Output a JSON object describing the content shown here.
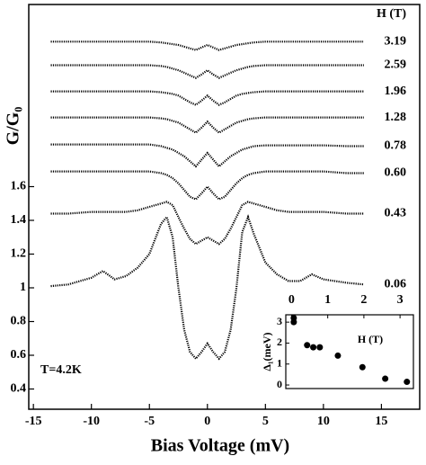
{
  "chart_data": [
    {
      "type": "line",
      "x_label": "Bias Voltage (mV)",
      "y_label": "G/G₀",
      "legend_title": "H (T)",
      "annotation": "T=4.2K",
      "xlim": [
        -15.4,
        18.3
      ],
      "ylim": [
        0.28,
        2.68
      ],
      "xticks": [
        -15,
        -10,
        -5,
        0,
        5,
        10,
        15
      ],
      "yticks": [
        0.4,
        0.6,
        0.8,
        1.0,
        1.2,
        1.4,
        1.6
      ],
      "x": [
        -13.5,
        -12,
        -10,
        -9,
        -8,
        -7,
        -6,
        -5,
        -4,
        -3.5,
        -3,
        -2.5,
        -2,
        -1.5,
        -1,
        -0.5,
        0,
        0.5,
        1,
        1.5,
        2,
        2.5,
        3,
        3.5,
        4,
        5,
        6,
        7,
        8,
        9,
        10,
        12,
        13.5
      ],
      "series": [
        {
          "name": "0.06",
          "color": "#000000",
          "values": [
            1.01,
            1.02,
            1.06,
            1.1,
            1.05,
            1.07,
            1.12,
            1.2,
            1.38,
            1.42,
            1.3,
            1.0,
            0.75,
            0.62,
            0.58,
            0.62,
            0.67,
            0.62,
            0.58,
            0.62,
            0.75,
            1.0,
            1.33,
            1.42,
            1.32,
            1.15,
            1.08,
            1.04,
            1.04,
            1.08,
            1.05,
            1.03,
            1.02
          ]
        },
        {
          "name": "0.43",
          "color": "#000000",
          "values": [
            1.44,
            1.44,
            1.45,
            1.45,
            1.45,
            1.45,
            1.46,
            1.48,
            1.5,
            1.51,
            1.49,
            1.42,
            1.35,
            1.29,
            1.26,
            1.28,
            1.3,
            1.28,
            1.26,
            1.29,
            1.35,
            1.42,
            1.49,
            1.51,
            1.5,
            1.48,
            1.46,
            1.45,
            1.45,
            1.45,
            1.45,
            1.44,
            1.44
          ]
        },
        {
          "name": "0.60",
          "color": "#000000",
          "values": [
            1.69,
            1.69,
            1.69,
            1.69,
            1.69,
            1.69,
            1.69,
            1.69,
            1.68,
            1.67,
            1.65,
            1.62,
            1.58,
            1.54,
            1.525,
            1.56,
            1.6,
            1.56,
            1.525,
            1.54,
            1.58,
            1.62,
            1.65,
            1.67,
            1.68,
            1.69,
            1.69,
            1.69,
            1.69,
            1.69,
            1.69,
            1.68,
            1.68
          ]
        },
        {
          "name": "0.78",
          "color": "#000000",
          "values": [
            1.85,
            1.85,
            1.85,
            1.85,
            1.85,
            1.85,
            1.85,
            1.85,
            1.84,
            1.83,
            1.82,
            1.8,
            1.78,
            1.75,
            1.72,
            1.76,
            1.8,
            1.76,
            1.72,
            1.75,
            1.78,
            1.8,
            1.82,
            1.83,
            1.84,
            1.845,
            1.845,
            1.845,
            1.845,
            1.845,
            1.845,
            1.84,
            1.84
          ]
        },
        {
          "name": "1.28",
          "color": "#000000",
          "values": [
            2.01,
            2.01,
            2.01,
            2.01,
            2.01,
            2.01,
            2.01,
            2.01,
            2.005,
            2.0,
            1.99,
            1.98,
            1.96,
            1.94,
            1.92,
            1.95,
            1.985,
            1.95,
            1.92,
            1.94,
            1.96,
            1.98,
            1.99,
            2.0,
            2.005,
            2.01,
            2.01,
            2.01,
            2.01,
            2.01,
            2.01,
            2.01,
            2.01
          ]
        },
        {
          "name": "1.96",
          "color": "#000000",
          "values": [
            2.165,
            2.165,
            2.165,
            2.165,
            2.165,
            2.165,
            2.165,
            2.165,
            2.16,
            2.155,
            2.15,
            2.14,
            2.12,
            2.1,
            2.085,
            2.11,
            2.14,
            2.11,
            2.085,
            2.1,
            2.12,
            2.14,
            2.15,
            2.155,
            2.16,
            2.165,
            2.165,
            2.165,
            2.165,
            2.165,
            2.165,
            2.165,
            2.165
          ]
        },
        {
          "name": "2.59",
          "color": "#000000",
          "values": [
            2.32,
            2.32,
            2.32,
            2.32,
            2.32,
            2.32,
            2.32,
            2.32,
            2.315,
            2.31,
            2.3,
            2.29,
            2.275,
            2.26,
            2.245,
            2.265,
            2.29,
            2.265,
            2.245,
            2.26,
            2.275,
            2.29,
            2.3,
            2.31,
            2.315,
            2.32,
            2.32,
            2.32,
            2.32,
            2.32,
            2.32,
            2.32,
            2.32
          ]
        },
        {
          "name": "3.19",
          "color": "#000000",
          "values": [
            2.46,
            2.46,
            2.46,
            2.46,
            2.46,
            2.46,
            2.46,
            2.46,
            2.455,
            2.45,
            2.445,
            2.44,
            2.43,
            2.42,
            2.41,
            2.425,
            2.44,
            2.425,
            2.41,
            2.42,
            2.43,
            2.44,
            2.445,
            2.45,
            2.455,
            2.46,
            2.46,
            2.46,
            2.46,
            2.46,
            2.46,
            2.46,
            2.46
          ]
        }
      ]
    },
    {
      "type": "scatter",
      "x_label": "H (T)",
      "y_label": "Δ₁(meV)",
      "xlim": [
        -0.16,
        3.37
      ],
      "ylim": [
        -0.17,
        3.35
      ],
      "xticks": [
        0,
        1,
        2,
        3
      ],
      "yticks": [
        0,
        1,
        2,
        3
      ],
      "color": "#000000",
      "x": [
        0.06,
        0.06,
        0.43,
        0.6,
        0.78,
        1.28,
        1.96,
        2.59,
        3.19
      ],
      "values": [
        3.2,
        3.0,
        1.9,
        1.8,
        1.8,
        1.4,
        0.85,
        0.3,
        0.15
      ]
    }
  ]
}
